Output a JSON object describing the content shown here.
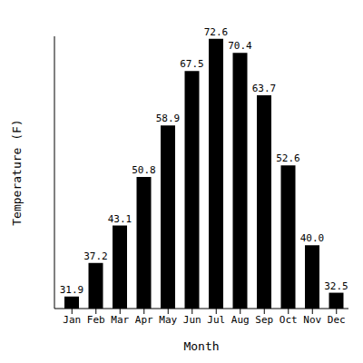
{
  "chart_data": {
    "type": "bar",
    "x_label": "Month",
    "y_label": "Temperature (F)",
    "categories": [
      "Jan",
      "Feb",
      "Mar",
      "Apr",
      "May",
      "Jun",
      "Jul",
      "Aug",
      "Sep",
      "Oct",
      "Nov",
      "Dec"
    ],
    "values": [
      31.9,
      37.2,
      43.1,
      50.8,
      58.9,
      67.5,
      72.6,
      70.4,
      63.7,
      52.6,
      40.0,
      32.5
    ],
    "value_labels": [
      "31.9",
      "37.2",
      "43.1",
      "50.8",
      "58.9",
      "67.5",
      "72.6",
      "70.4",
      "63.7",
      "52.6",
      "40.0",
      "32.5"
    ],
    "color": "#000000",
    "ylim": [
      30,
      73
    ],
    "grid": false,
    "data_labels": true,
    "tick_labels": "x"
  }
}
